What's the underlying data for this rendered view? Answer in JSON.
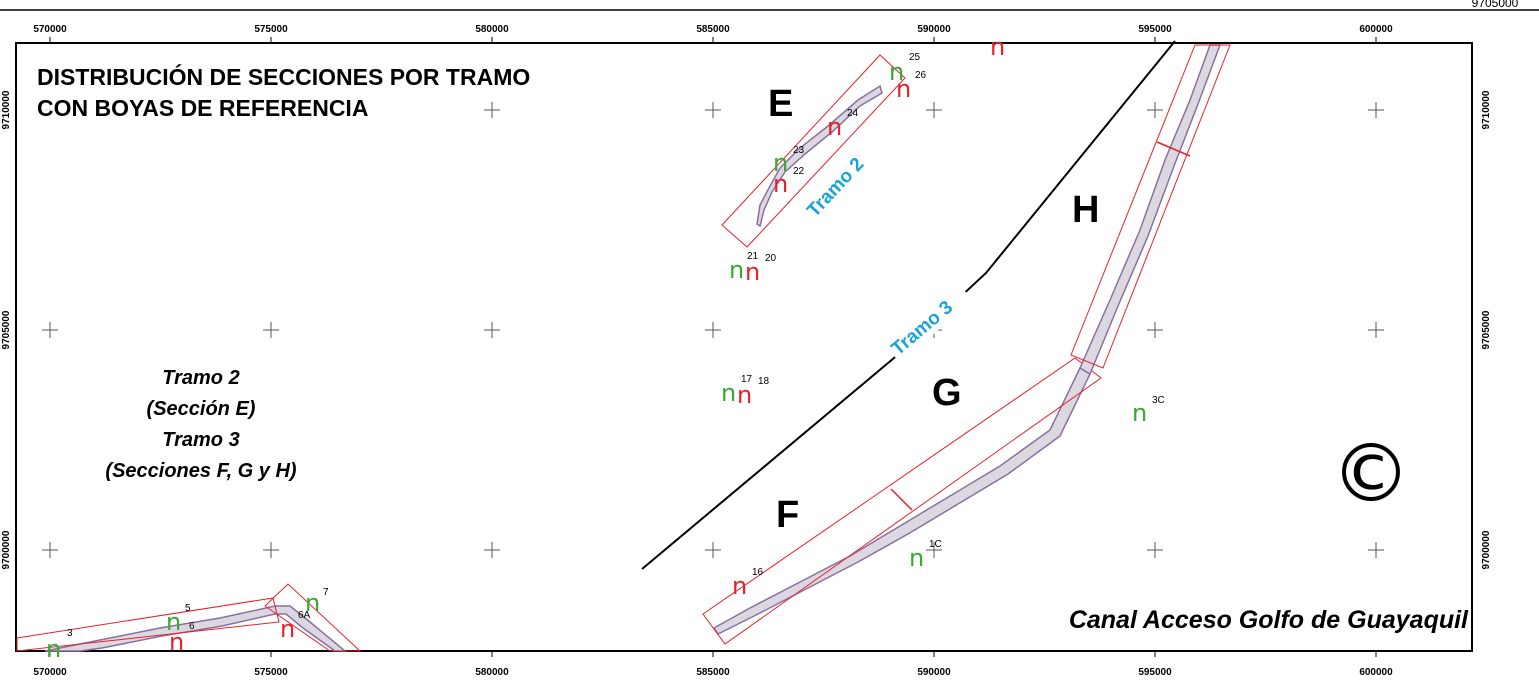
{
  "map": {
    "title_lines": [
      "DISTRIBUCIÓN DE SECCIONES POR TRAMO",
      "CON BOYAS DE REFERENCIA"
    ],
    "legend_lines": [
      "Tramo 2",
      "(Sección E)",
      "Tramo 3",
      "(Secciones F, G y H)"
    ],
    "canal_name": "Canal Acceso Golfo de Guayaquil",
    "copyright_symbol": "©",
    "top_right_label": "9705000",
    "easting_ticks": [
      "570000",
      "575000",
      "580000",
      "585000",
      "590000",
      "595000",
      "600000"
    ],
    "northing_ticks": [
      "9710000",
      "9705000",
      "9700000"
    ],
    "sections": [
      "E",
      "F",
      "G",
      "H"
    ],
    "tramos": [
      "Tramo 2",
      "Tramo 3"
    ],
    "buoy_glyph": "n",
    "buoys": [
      {
        "label": "3",
        "color": "green"
      },
      {
        "label": "5",
        "color": "green"
      },
      {
        "label": "6",
        "color": "red"
      },
      {
        "label": "7",
        "color": "green"
      },
      {
        "label": "6A",
        "color": "red"
      },
      {
        "label": "16",
        "color": "red"
      },
      {
        "label": "17",
        "color": "green"
      },
      {
        "label": "18",
        "color": "red"
      },
      {
        "label": "21",
        "color": "green"
      },
      {
        "label": "20",
        "color": "red"
      },
      {
        "label": "23",
        "color": "green"
      },
      {
        "label": "22",
        "color": "red"
      },
      {
        "label": "24",
        "color": "red"
      },
      {
        "label": "25",
        "color": "green"
      },
      {
        "label": "26",
        "color": "red"
      },
      {
        "label": "1C",
        "color": "green"
      },
      {
        "label": "3C",
        "color": "green"
      }
    ],
    "colors": {
      "green_buoy": "#3aa832",
      "red_buoy": "#e8212a",
      "section_outline": "#e8212a",
      "channel_fill": "#dcd8e0",
      "channel_edge": "#8a6fa3",
      "tramo_label": "#1aa3d9"
    }
  }
}
